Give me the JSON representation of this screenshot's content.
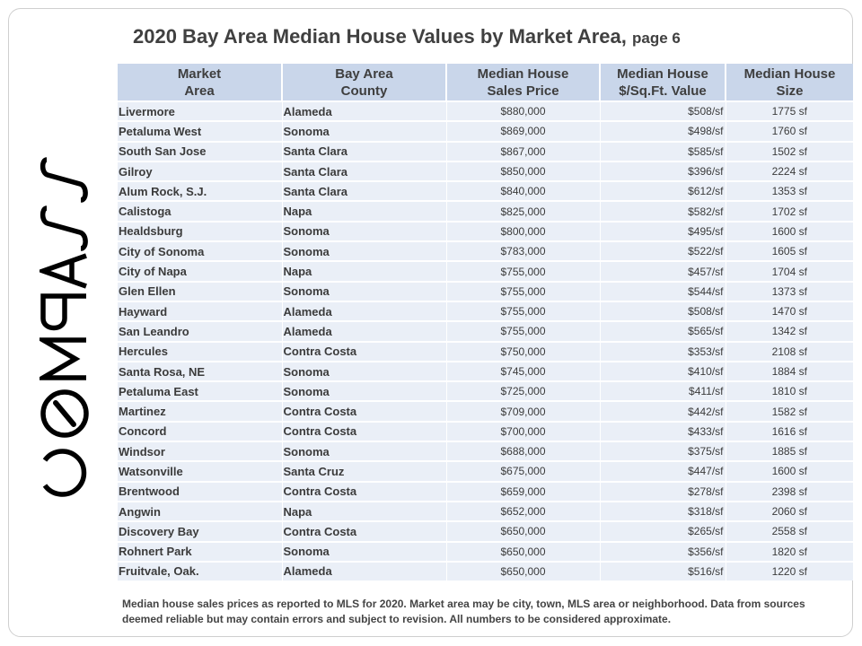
{
  "title": {
    "main": "2020 Bay Area Median House Values by Market Area,",
    "suffix": "page 6"
  },
  "logo": {
    "brand_text": "COMPASS",
    "icon": "compass-logo"
  },
  "table": {
    "headers": [
      {
        "line1": "Market",
        "line2": "Area"
      },
      {
        "line1": "Bay Area",
        "line2": "County"
      },
      {
        "line1": "Median House",
        "line2": "Sales Price"
      },
      {
        "line1": "Median House",
        "line2": "$/Sq.Ft. Value"
      },
      {
        "line1": "Median House",
        "line2": "Size"
      }
    ],
    "rows": [
      [
        "Livermore",
        "Alameda",
        "$880,000",
        "$508/sf",
        "1775  sf"
      ],
      [
        "Petaluma West",
        "Sonoma",
        "$869,000",
        "$498/sf",
        "1760  sf"
      ],
      [
        "South San Jose",
        "Santa Clara",
        "$867,000",
        "$585/sf",
        "1502  sf"
      ],
      [
        "Gilroy",
        "Santa Clara",
        "$850,000",
        "$396/sf",
        "2224  sf"
      ],
      [
        "Alum Rock, S.J.",
        "Santa Clara",
        "$840,000",
        "$612/sf",
        "1353  sf"
      ],
      [
        "Calistoga",
        "Napa",
        "$825,000",
        "$582/sf",
        "1702  sf"
      ],
      [
        "Healdsburg",
        "Sonoma",
        "$800,000",
        "$495/sf",
        "1600  sf"
      ],
      [
        "City of Sonoma",
        "Sonoma",
        "$783,000",
        "$522/sf",
        "1605  sf"
      ],
      [
        "City of Napa",
        "Napa",
        "$755,000",
        "$457/sf",
        "1704  sf"
      ],
      [
        "Glen Ellen",
        "Sonoma",
        "$755,000",
        "$544/sf",
        "1373  sf"
      ],
      [
        "Hayward",
        "Alameda",
        "$755,000",
        "$508/sf",
        "1470  sf"
      ],
      [
        "San Leandro",
        "Alameda",
        "$755,000",
        "$565/sf",
        "1342  sf"
      ],
      [
        "Hercules",
        "Contra Costa",
        "$750,000",
        "$353/sf",
        "2108  sf"
      ],
      [
        "Santa Rosa, NE",
        "Sonoma",
        "$745,000",
        "$410/sf",
        "1884  sf"
      ],
      [
        "Petaluma East",
        "Sonoma",
        "$725,000",
        "$411/sf",
        "1810  sf"
      ],
      [
        "Martinez",
        "Contra Costa",
        "$709,000",
        "$442/sf",
        "1582  sf"
      ],
      [
        "Concord",
        "Contra Costa",
        "$700,000",
        "$433/sf",
        "1616  sf"
      ],
      [
        "Windsor",
        "Sonoma",
        "$688,000",
        "$375/sf",
        "1885  sf"
      ],
      [
        "Watsonville",
        "Santa Cruz",
        "$675,000",
        "$447/sf",
        "1600  sf"
      ],
      [
        "Brentwood",
        "Contra Costa",
        "$659,000",
        "$278/sf",
        "2398  sf"
      ],
      [
        "Angwin",
        "Napa",
        "$652,000",
        "$318/sf",
        "2060  sf"
      ],
      [
        "Discovery Bay",
        "Contra Costa",
        "$650,000",
        "$265/sf",
        "2558  sf"
      ],
      [
        "Rohnert Park",
        "Sonoma",
        "$650,000",
        "$356/sf",
        "1820  sf"
      ],
      [
        "Fruitvale, Oak.",
        "Alameda",
        "$650,000",
        "$516/sf",
        "1220  sf"
      ]
    ]
  },
  "footnote": "Median house sales prices as  reported to MLS for 2020.  Market area may be city, town, MLS area or neighborhood. Data from sources deemed reliable but may contain errors and subject to revision. All numbers to be considered approximate.",
  "colors": {
    "header_bg": "#c9d6ea",
    "row_bg": "#eaeff7",
    "text": "#3b3b3b",
    "logo": "#000000"
  }
}
